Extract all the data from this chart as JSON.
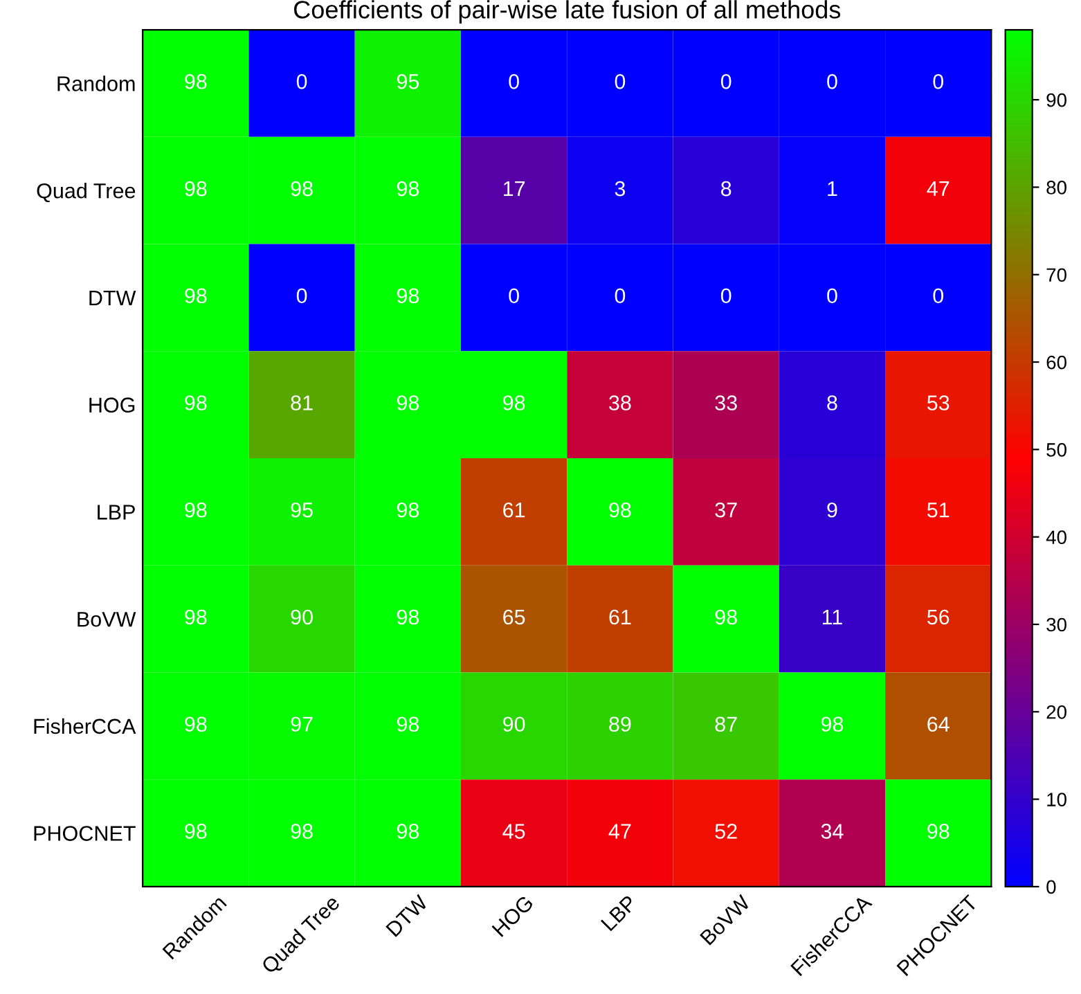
{
  "chart_data": {
    "type": "heatmap",
    "title": "Coefficients of pair-wise late fusion of all methods",
    "categories": [
      "Random",
      "Quad Tree",
      "DTW",
      "HOG",
      "LBP",
      "BoVW",
      "FisherCCA",
      "PHOCNET"
    ],
    "y_categories": [
      "Random",
      "Quad Tree",
      "DTW",
      "HOG",
      "LBP",
      "BoVW",
      "FisherCCA",
      "PHOCNET"
    ],
    "cells": [
      [
        98,
        0,
        95,
        0,
        0,
        0,
        0,
        0
      ],
      [
        98,
        98,
        98,
        17,
        3,
        8,
        1,
        47
      ],
      [
        98,
        0,
        98,
        0,
        0,
        0,
        0,
        0
      ],
      [
        98,
        81,
        98,
        98,
        38,
        33,
        8,
        53
      ],
      [
        98,
        95,
        98,
        61,
        98,
        37,
        9,
        51
      ],
      [
        98,
        90,
        98,
        65,
        61,
        98,
        11,
        56
      ],
      [
        98,
        97,
        98,
        90,
        89,
        87,
        98,
        64
      ],
      [
        98,
        98,
        98,
        45,
        47,
        52,
        34,
        98
      ]
    ],
    "data_labels": true,
    "clim": [
      0,
      98
    ],
    "cticks": [
      0,
      10,
      20,
      30,
      40,
      50,
      60,
      70,
      80,
      90
    ]
  }
}
